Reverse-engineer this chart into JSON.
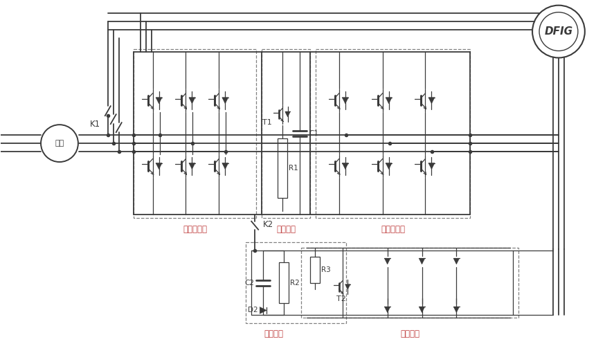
{
  "bg_color": "#ffffff",
  "lc": "#3a3a3a",
  "dc": "#808080",
  "red_lbl": "#c04040",
  "labels": {
    "dianguan": "电网",
    "dfig": "DFIG",
    "k1": "K1",
    "k2": "K2",
    "c1": "C1",
    "t1": "T1",
    "r1": "R1",
    "c2": "C2",
    "r2": "R2",
    "d2": "D2",
    "t2": "T2",
    "r3": "R3",
    "wangce": "网侧变频器",
    "jice": "机侧变频器",
    "zhelan": "斩波电路",
    "xishou": "吸收回路",
    "tang": "撬棒回路"
  }
}
